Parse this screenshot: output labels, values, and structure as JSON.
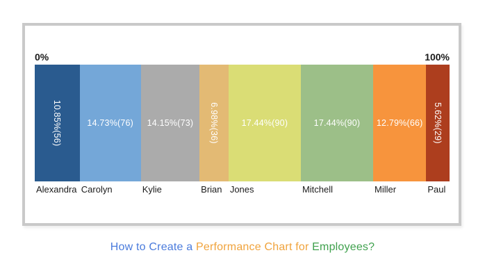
{
  "chart_data": {
    "type": "bar",
    "subtype": "stacked-horizontal-100pct",
    "title": "How to Create a Performance Chart for Employees?",
    "axis": {
      "left_label": "0%",
      "right_label": "100%"
    },
    "categories": [
      "Alexandra",
      "Carolyn",
      "Kylie",
      "Brian",
      "Jones",
      "Mitchell",
      "Miller",
      "Paul"
    ],
    "values_percent": [
      10.85,
      14.73,
      14.15,
      6.98,
      17.44,
      17.44,
      12.79,
      5.62
    ],
    "values_count": [
      56,
      76,
      73,
      36,
      90,
      90,
      66,
      29
    ],
    "segments": [
      {
        "name": "Alexandra",
        "label": "10.85%(56)",
        "percent": 10.85,
        "count": 56,
        "color": "#2A5B8F",
        "rotated": true
      },
      {
        "name": "Carolyn",
        "label": "14.73%(76)",
        "percent": 14.73,
        "count": 76,
        "color": "#74A7D8",
        "rotated": false
      },
      {
        "name": "Kylie",
        "label": "14.15%(73)",
        "percent": 14.15,
        "count": 73,
        "color": "#ABABAB",
        "rotated": false
      },
      {
        "name": "Brian",
        "label": "6.98%(36)",
        "percent": 6.98,
        "count": 36,
        "color": "#E3BA74",
        "rotated": true
      },
      {
        "name": "Jones",
        "label": "17.44%(90)",
        "percent": 17.44,
        "count": 90,
        "color": "#DADD75",
        "rotated": false
      },
      {
        "name": "Mitchell",
        "label": "17.44%(90)",
        "percent": 17.44,
        "count": 90,
        "color": "#9CBF88",
        "rotated": false
      },
      {
        "name": "Miller",
        "label": "12.79%(66)",
        "percent": 12.79,
        "count": 66,
        "color": "#F7943D",
        "rotated": false
      },
      {
        "name": "Paul",
        "label": "5.62%(29)",
        "percent": 5.62,
        "count": 29,
        "color": "#AD3E1E",
        "rotated": true
      }
    ],
    "layout": {
      "grid": false,
      "legend": "none",
      "label_color": "#ffffff",
      "frame_border_color": "#c9c9c9"
    }
  },
  "caption": {
    "parts": [
      {
        "text": "How to Create a ",
        "color": "#4A7BDC"
      },
      {
        "text": "Performance Chart for ",
        "color": "#F0A33C"
      },
      {
        "text": "Employees?",
        "color": "#3FA14D"
      }
    ]
  }
}
